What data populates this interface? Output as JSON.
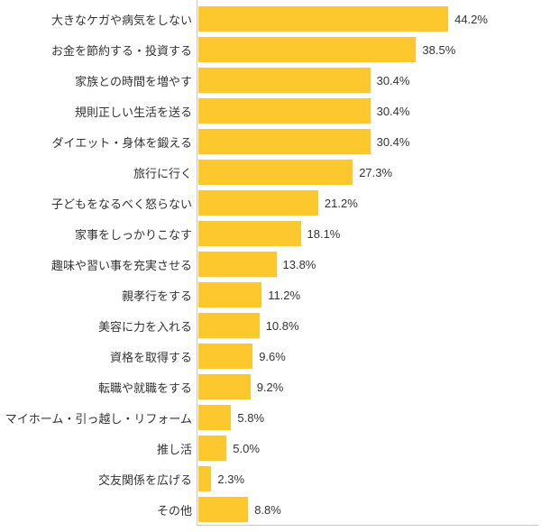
{
  "chart_data": {
    "type": "bar",
    "orientation": "horizontal",
    "title": "",
    "xlabel": "",
    "ylabel": "",
    "xlim": [
      0,
      50
    ],
    "grid": false,
    "legend": false,
    "bar_color": "#fdc72e",
    "axis_line_color": "#c8c8c8",
    "text_color": "#333333",
    "categories": [
      "大きなケガや病気をしない",
      "お金を節約する・投資する",
      "家族との時間を増やす",
      "規則正しい生活を送る",
      "ダイエット・身体を鍛える",
      "旅行に行く",
      "子どもをなるべく怒らない",
      "家事をしっかりこなす",
      "趣味や習い事を充実させる",
      "親孝行をする",
      "美容に力を入れる",
      "資格を取得する",
      "転職や就職をする",
      "マイホーム・引っ越し・リフォーム",
      "推し活",
      "交友関係を広げる",
      "その他"
    ],
    "values": [
      44.2,
      38.5,
      30.4,
      30.4,
      30.4,
      27.3,
      21.2,
      18.1,
      13.8,
      11.2,
      10.8,
      9.6,
      9.2,
      5.8,
      5.0,
      2.3,
      8.8
    ],
    "value_labels": [
      "44.2%",
      "38.5%",
      "30.4%",
      "30.4%",
      "30.4%",
      "27.3%",
      "21.2%",
      "18.1%",
      "13.8%",
      "11.2%",
      "10.8%",
      "9.6%",
      "9.2%",
      "5.8%",
      "5.0%",
      "2.3%",
      "8.8%"
    ]
  }
}
